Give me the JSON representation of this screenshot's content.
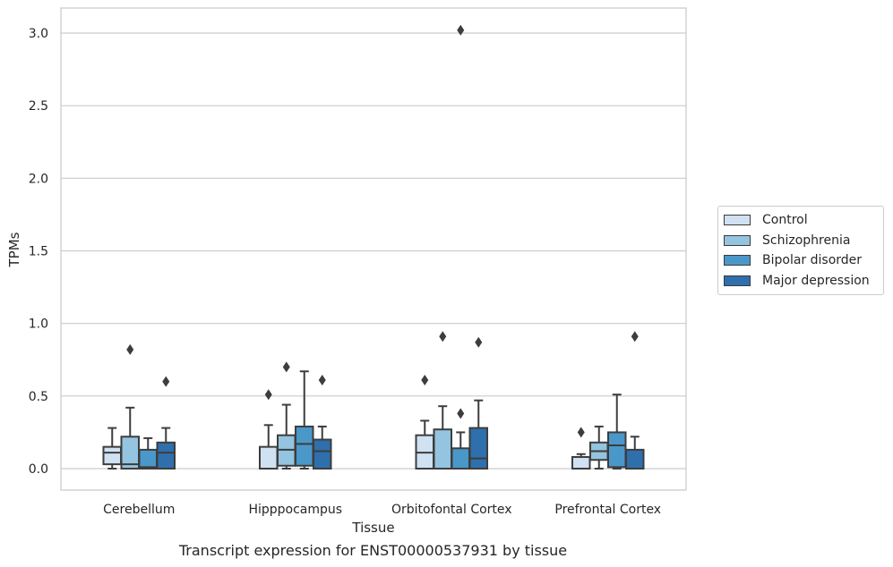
{
  "caption": "Transcript expression for ENST00000537931 by tissue",
  "chart_data": {
    "type": "box",
    "xlabel": "Tissue",
    "ylabel": "TPMs",
    "ylim": [
      -0.15,
      3.18
    ],
    "yticks": [
      "0.0",
      "0.5",
      "1.0",
      "1.5",
      "2.0",
      "2.5",
      "3.0"
    ],
    "grid": "horizontal",
    "legend_position": "right",
    "categories": [
      "Cerebellum",
      "Hipppocampus",
      "Orbitofontal Cortex",
      "Prefrontal Cortex"
    ],
    "series": [
      {
        "name": "Control",
        "color": "#d0e1f2",
        "boxes": [
          {
            "whisker_low": 0.0,
            "q1": 0.03,
            "median": 0.11,
            "q3": 0.15,
            "whisker_high": 0.28,
            "outliers": []
          },
          {
            "whisker_low": 0.0,
            "q1": 0.0,
            "median": 0.0,
            "q3": 0.15,
            "whisker_high": 0.3,
            "outliers": [
              0.51
            ]
          },
          {
            "whisker_low": 0.0,
            "q1": 0.0,
            "median": 0.11,
            "q3": 0.23,
            "whisker_high": 0.33,
            "outliers": [
              0.61
            ]
          },
          {
            "whisker_low": 0.0,
            "q1": 0.0,
            "median": 0.0,
            "q3": 0.08,
            "whisker_high": 0.1,
            "outliers": [
              0.25
            ]
          }
        ]
      },
      {
        "name": "Schizophrenia",
        "color": "#94c4df",
        "boxes": [
          {
            "whisker_low": 0.0,
            "q1": 0.0,
            "median": 0.03,
            "q3": 0.22,
            "whisker_high": 0.42,
            "outliers": [
              0.82
            ]
          },
          {
            "whisker_low": 0.0,
            "q1": 0.02,
            "median": 0.13,
            "q3": 0.23,
            "whisker_high": 0.44,
            "outliers": [
              0.7
            ]
          },
          {
            "whisker_low": 0.0,
            "q1": 0.0,
            "median": 0.0,
            "q3": 0.27,
            "whisker_high": 0.43,
            "outliers": [
              0.91
            ]
          },
          {
            "whisker_low": 0.0,
            "q1": 0.06,
            "median": 0.12,
            "q3": 0.18,
            "whisker_high": 0.29,
            "outliers": []
          }
        ]
      },
      {
        "name": "Bipolar disorder",
        "color": "#4a98c9",
        "boxes": [
          {
            "whisker_low": 0.0,
            "q1": 0.0,
            "median": 0.01,
            "q3": 0.13,
            "whisker_high": 0.21,
            "outliers": []
          },
          {
            "whisker_low": 0.0,
            "q1": 0.02,
            "median": 0.17,
            "q3": 0.29,
            "whisker_high": 0.67,
            "outliers": []
          },
          {
            "whisker_low": 0.0,
            "q1": 0.0,
            "median": 0.0,
            "q3": 0.14,
            "whisker_high": 0.25,
            "outliers": [
              0.38
            ]
          },
          {
            "whisker_low": 0.0,
            "q1": 0.01,
            "median": 0.16,
            "q3": 0.25,
            "whisker_high": 0.51,
            "outliers": []
          }
        ]
      },
      {
        "name": "Major depression",
        "color": "#2e6fac",
        "boxes": [
          {
            "whisker_low": 0.0,
            "q1": 0.0,
            "median": 0.11,
            "q3": 0.18,
            "whisker_high": 0.28,
            "outliers": [
              0.6
            ]
          },
          {
            "whisker_low": 0.0,
            "q1": 0.0,
            "median": 0.12,
            "q3": 0.2,
            "whisker_high": 0.29,
            "outliers": [
              0.61
            ]
          },
          {
            "whisker_low": 0.0,
            "q1": 0.0,
            "median": 0.07,
            "q3": 0.28,
            "whisker_high": 0.47,
            "outliers": [
              0.87
            ]
          },
          {
            "whisker_low": 0.0,
            "q1": 0.0,
            "median": 0.0,
            "q3": 0.13,
            "whisker_high": 0.22,
            "outliers": [
              0.91
            ]
          }
        ]
      }
    ],
    "extra_outliers": [
      {
        "category": "Orbitofontal Cortex",
        "series": "Bipolar disorder",
        "value": 3.02
      }
    ]
  }
}
